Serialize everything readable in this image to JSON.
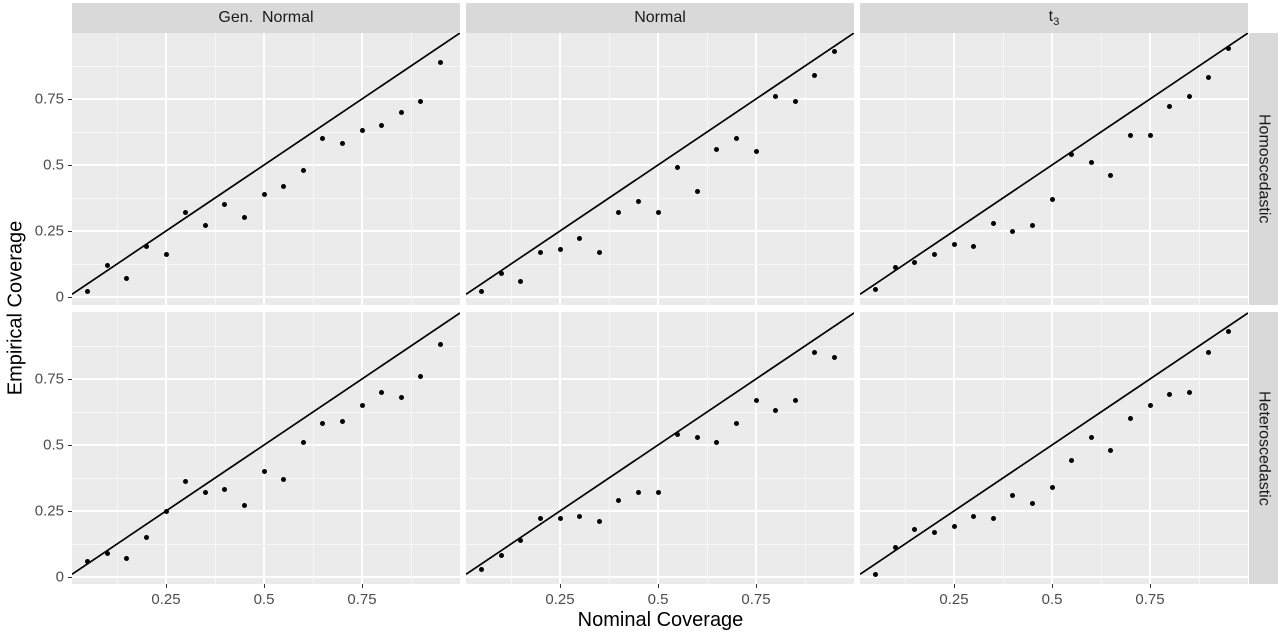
{
  "figure": {
    "x_axis_title": "Nominal Coverage",
    "y_axis_title": "Empirical Coverage",
    "x_ticks": [
      {
        "label": "0.25",
        "v": 0.25
      },
      {
        "label": "0.5",
        "v": 0.5
      },
      {
        "label": "0.75",
        "v": 0.75
      }
    ],
    "y_ticks": [
      {
        "label": "0",
        "v": 0
      },
      {
        "label": "0.25",
        "v": 0.25
      },
      {
        "label": "0.5",
        "v": 0.5
      },
      {
        "label": "0.75",
        "v": 0.75
      }
    ],
    "x_minor": [
      0.125,
      0.375,
      0.625,
      0.875
    ],
    "y_minor": [
      0.125,
      0.375,
      0.625,
      0.875
    ],
    "colors": {
      "panel_bg": "#EBEBEB",
      "strip_bg": "#D9D9D9",
      "grid": "#FFFFFF",
      "tick_mark": "#333333",
      "tick_label": "#4D4D4D",
      "strip_text": "#1A1A1A",
      "point": "#000000",
      "line": "#000000"
    }
  },
  "chart_data": {
    "type": "scatter",
    "title": "",
    "xlabel": "Nominal Coverage",
    "ylabel": "Empirical Coverage",
    "xlim": [
      0.01,
      1.0
    ],
    "ylim": [
      -0.03,
      1.0
    ],
    "grid": "on",
    "abline": {
      "slope": 1,
      "intercept": 0
    },
    "facet_cols": [
      {
        "label": "Gen.  Normal"
      },
      {
        "label": "Normal"
      },
      {
        "label": "t",
        "sub": "3"
      }
    ],
    "facet_rows": [
      {
        "label": "Homoscedastic"
      },
      {
        "label": "Heteroscedastic"
      }
    ],
    "x": [
      0.05,
      0.1,
      0.15,
      0.2,
      0.25,
      0.3,
      0.35,
      0.4,
      0.45,
      0.5,
      0.55,
      0.6,
      0.65,
      0.7,
      0.75,
      0.8,
      0.85,
      0.9,
      0.95
    ],
    "series": [
      {
        "row": "Homoscedastic",
        "col": "Gen. Normal",
        "values": [
          0.02,
          0.12,
          0.07,
          0.19,
          0.16,
          0.32,
          0.27,
          0.35,
          0.3,
          0.39,
          0.42,
          0.48,
          0.6,
          0.58,
          0.63,
          0.65,
          0.7,
          0.74,
          0.89
        ]
      },
      {
        "row": "Homoscedastic",
        "col": "Normal",
        "values": [
          0.02,
          0.09,
          0.06,
          0.17,
          0.18,
          0.22,
          0.17,
          0.32,
          0.36,
          0.32,
          0.49,
          0.4,
          0.56,
          0.6,
          0.55,
          0.76,
          0.74,
          0.84,
          0.93
        ]
      },
      {
        "row": "Homoscedastic",
        "col": "t3",
        "values": [
          0.03,
          0.11,
          0.13,
          0.16,
          0.2,
          0.19,
          0.28,
          0.25,
          0.27,
          0.37,
          0.54,
          0.51,
          0.46,
          0.61,
          0.61,
          0.72,
          0.76,
          0.83,
          0.94
        ]
      },
      {
        "row": "Heteroscedastic",
        "col": "Gen. Normal",
        "values": [
          0.06,
          0.09,
          0.07,
          0.15,
          0.25,
          0.36,
          0.32,
          0.33,
          0.27,
          0.4,
          0.37,
          0.51,
          0.58,
          0.59,
          0.65,
          0.7,
          0.68,
          0.76,
          0.88
        ]
      },
      {
        "row": "Heteroscedastic",
        "col": "Normal",
        "values": [
          0.03,
          0.08,
          0.14,
          0.22,
          0.22,
          0.23,
          0.21,
          0.29,
          0.32,
          0.32,
          0.54,
          0.53,
          0.51,
          0.58,
          0.67,
          0.63,
          0.67,
          0.85,
          0.83
        ]
      },
      {
        "row": "Heteroscedastic",
        "col": "t3",
        "values": [
          0.01,
          0.11,
          0.18,
          0.17,
          0.19,
          0.23,
          0.22,
          0.31,
          0.28,
          0.34,
          0.44,
          0.53,
          0.48,
          0.6,
          0.65,
          0.69,
          0.7,
          0.85,
          0.93
        ]
      }
    ]
  }
}
